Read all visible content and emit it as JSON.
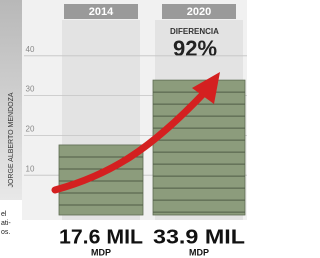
{
  "chart_data": {
    "type": "bar",
    "categories": [
      "2014",
      "2020"
    ],
    "values": [
      17.6,
      33.9
    ],
    "value_labels": [
      "17.6 MIL",
      "33.9 MIL"
    ],
    "unit": "MDP",
    "annotation_title": "DIFERENCIA",
    "annotation_value": "92%",
    "color": "#8c9c7c",
    "ylim": [
      0,
      49
    ],
    "yticks": [
      10,
      20,
      30,
      40
    ],
    "grid": true,
    "photo_credit": "JORGE ALBERTO MENDOZA",
    "side_text": [
      "el",
      "ati-",
      "os."
    ]
  }
}
